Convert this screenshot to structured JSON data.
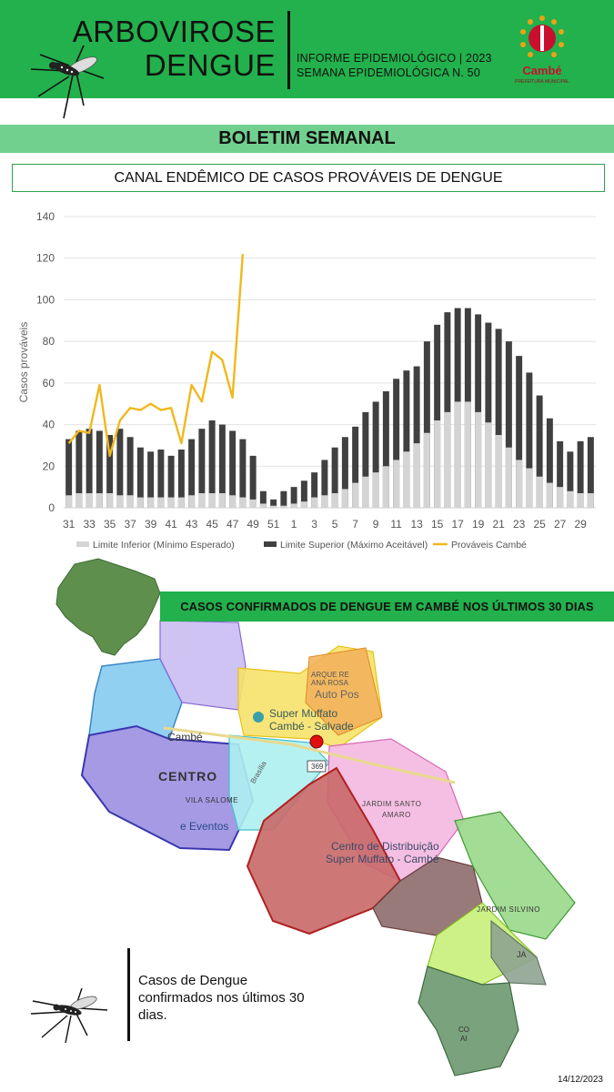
{
  "header": {
    "title_line1": "ARBOVIROSE",
    "title_line2": "DENGUE",
    "info_line1": "INFORME EPIDEMIOLÓGICO | 2023",
    "info_line2": "SEMANA EPIDEMIOLÓGICA  N. 50",
    "logo_text": "Cambé",
    "logo_subtext": "PREFEITURA MUNICIPAL",
    "colors": {
      "green": "#22b14c",
      "light_green": "#72d08f",
      "logo_red": "#c8102e"
    }
  },
  "bulletin": {
    "label": "BOLETIM SEMANAL"
  },
  "chart_title": "CANAL ENDÊMICO DE CASOS PROVÁVEIS DE DENGUE",
  "chart_data": {
    "type": "bar",
    "title": "CANAL ENDÊMICO DE CASOS PROVÁVEIS DE DENGUE",
    "ylabel": "Casos prováveis",
    "xlabel": "",
    "ylim": [
      0,
      140
    ],
    "yticks": [
      0,
      20,
      40,
      60,
      80,
      100,
      120,
      140
    ],
    "grid": true,
    "legend_position": "bottom",
    "categories": [
      "31",
      "32",
      "33",
      "34",
      "35",
      "36",
      "37",
      "38",
      "39",
      "40",
      "41",
      "42",
      "43",
      "44",
      "45",
      "46",
      "47",
      "48",
      "49",
      "50",
      "51",
      "52",
      "1",
      "2",
      "3",
      "4",
      "5",
      "6",
      "7",
      "8",
      "9",
      "10",
      "11",
      "12",
      "13",
      "14",
      "15",
      "16",
      "17",
      "18",
      "19",
      "20",
      "21",
      "22",
      "23",
      "24",
      "25",
      "26",
      "27",
      "28",
      "29",
      "30"
    ],
    "xtick_labels": [
      "31",
      "33",
      "35",
      "37",
      "39",
      "41",
      "43",
      "45",
      "47",
      "49",
      "51",
      "1",
      "3",
      "5",
      "7",
      "9",
      "11",
      "13",
      "15",
      "17",
      "19",
      "21",
      "23",
      "25",
      "27",
      "29"
    ],
    "series": [
      {
        "name": "Limite Inferior (Mínimo Esperado)",
        "type": "bar",
        "color": "#d4d4d4",
        "values": [
          6,
          7,
          7,
          7,
          7,
          6,
          6,
          5,
          5,
          5,
          5,
          5,
          6,
          7,
          7,
          7,
          6,
          5,
          4,
          2,
          1,
          1,
          2,
          3,
          5,
          6,
          7,
          9,
          12,
          15,
          17,
          20,
          23,
          27,
          31,
          36,
          42,
          46,
          51,
          51,
          46,
          41,
          35,
          29,
          23,
          19,
          15,
          12,
          10,
          8,
          7,
          7
        ]
      },
      {
        "name": "Limite Superior (Máximo Aceitável)",
        "type": "bar",
        "color": "#404040",
        "values": [
          33,
          37,
          38,
          37,
          35,
          38,
          34,
          29,
          27,
          28,
          25,
          28,
          33,
          38,
          42,
          40,
          37,
          33,
          25,
          8,
          4,
          8,
          10,
          13,
          17,
          23,
          29,
          34,
          39,
          46,
          51,
          56,
          62,
          66,
          68,
          80,
          88,
          94,
          96,
          96,
          93,
          89,
          86,
          80,
          73,
          65,
          54,
          43,
          32,
          27,
          32,
          34
        ]
      },
      {
        "name": "Prováveis Cambé",
        "type": "line",
        "color": "#f0b81e",
        "values": [
          31,
          37,
          36,
          59,
          25,
          42,
          48,
          47,
          50,
          47,
          48,
          31,
          59,
          51,
          75,
          71,
          53,
          122,
          null,
          null,
          null,
          null,
          null,
          null,
          null,
          null,
          null,
          null,
          null,
          null,
          null,
          null,
          null,
          null,
          null,
          null,
          null,
          null,
          null,
          null,
          null,
          null,
          null,
          null,
          null,
          null,
          null,
          null,
          null,
          null,
          null,
          null
        ]
      }
    ]
  },
  "map": {
    "banner": "CASOS CONFIRMADOS DE DENGUE EM CAMBÉ NOS ÚLTIMOS 30 DIAS",
    "labels": {
      "parque_ana_rosa": "ARQUE RE\nANA ROSA",
      "auto_pos": "Auto Pos",
      "super_muffato": "Super Muffato\nCambé - Salvade",
      "cambe": "Cambé",
      "centro": "CENTRO",
      "vila_salome": "VILA SALOME",
      "eventos": "e Eventos",
      "jardim_santo_amaro": "JARDIM SANTO\nAMARO",
      "centro_distribuicao": "Centro de Distribuição\nSuper Muffato - Cambé",
      "jardim_silvino": "JARDIM SILVINO",
      "brasilia": "Brasília",
      "ja": "JA",
      "route": "369",
      "co": "CO\nAI"
    },
    "case_marker_color": "#e01010"
  },
  "legend": {
    "text": "Casos de Dengue confirmados nos últimos 30 dias."
  },
  "footer": {
    "date": "14/12/2023"
  }
}
